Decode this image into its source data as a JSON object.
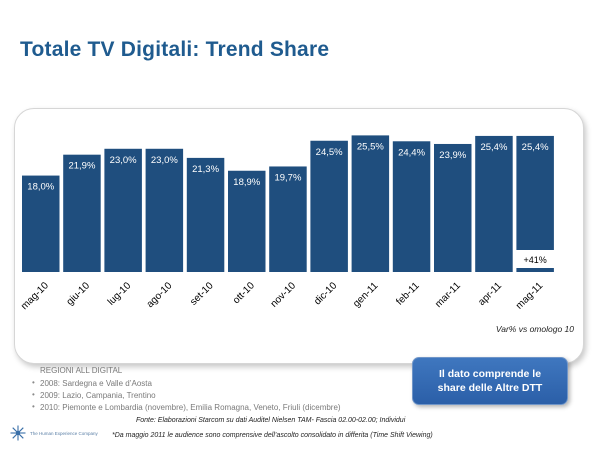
{
  "page": {
    "title": "Totale TV Digitali: Trend Share",
    "var_note": "Var% vs omologo 10",
    "callout_line1": "Il dato comprende le",
    "callout_line2": "share delle Altre DTT",
    "regions_title": "REGIONI ALL DIGITAL",
    "regions": [
      "2008: Sardegna e Valle d’Aosta",
      "2009: Lazio, Campania, Trentino",
      "2010: Piemonte e Lombardia (novembre), Emilia Romagna, Veneto, Friuli (dicembre)"
    ],
    "source": "Fonte: Elaborazioni Starcom su dati Auditel Nielsen TAM- Fascia 02.00-02.00; Individui",
    "footnote": "*Da maggio 2011 le audience sono comprensive dell’ascolto consolidato in differita (Time Shift Viewing)",
    "logo_text": "The Human Experience Company"
  },
  "colors": {
    "bar": "#1f4e7e",
    "title": "#1f5b8f",
    "callout": "#3467b0"
  },
  "chart_data": {
    "type": "bar",
    "title": "Totale TV Digitali: Trend Share",
    "categories": [
      "mag-10",
      "giu-10",
      "lug-10",
      "ago-10",
      "set-10",
      "ott-10",
      "nov-10",
      "dic-10",
      "gen-11",
      "feb-11",
      "mar-11",
      "apr-11",
      "mag-11"
    ],
    "values": [
      18.0,
      21.9,
      23.0,
      23.0,
      21.3,
      18.9,
      19.7,
      24.5,
      25.5,
      24.4,
      23.9,
      25.4,
      25.4
    ],
    "data_labels": [
      "18,0%",
      "21,9%",
      "23,0%",
      "23,0%",
      "21,3%",
      "18,9%",
      "19,7%",
      "24,5%",
      "25,5%",
      "24,4%",
      "23,9%",
      "25,4%",
      "25,4%"
    ],
    "annotations": [
      {
        "category": "mag-11",
        "text": "+41%"
      }
    ],
    "xlabel": "",
    "ylabel": "",
    "ylim": [
      0,
      28
    ],
    "grid": false
  }
}
